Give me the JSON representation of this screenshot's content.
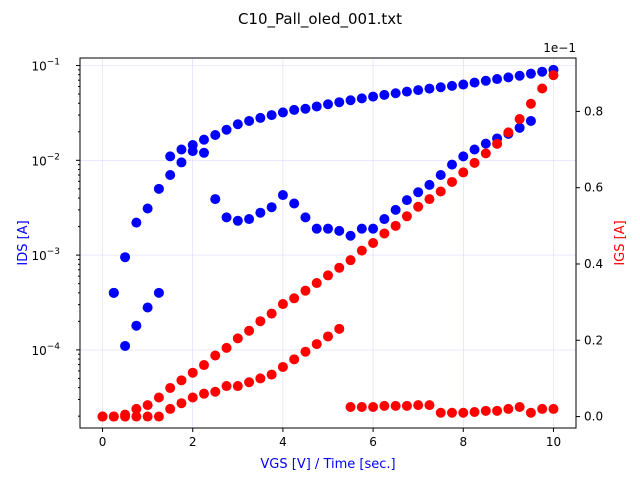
{
  "chart_data": {
    "type": "scatter",
    "title": "C10_Pall_oled_001.txt",
    "xlabel": "VGS [V] / Time [sec.]",
    "ylabel": "IDS [A]",
    "ylabel_right": "IGS [A]",
    "right_axis_multiplier": "1e−1",
    "xlim": [
      -0.5,
      10.5
    ],
    "ylim_left": [
      1.5e-05,
      0.12
    ],
    "yscale_left": "log",
    "ylim_right": [
      -0.03,
      0.94
    ],
    "x_ticks": [
      "0",
      "2",
      "4",
      "6",
      "8",
      "10"
    ],
    "x_tick_values": [
      0,
      2,
      4,
      6,
      8,
      10
    ],
    "y_left_ticks": [
      {
        "value": 0.1,
        "base": "10",
        "exp": "−1"
      },
      {
        "value": 0.01,
        "base": "10",
        "exp": "−2"
      },
      {
        "value": 0.001,
        "base": "10",
        "exp": "−3"
      },
      {
        "value": 0.0001,
        "base": "10",
        "exp": "−4"
      }
    ],
    "y_right_ticks": [
      "0.0",
      "0.2",
      "0.4",
      "0.6",
      "0.8"
    ],
    "y_right_tick_values": [
      0.0,
      0.2,
      0.4,
      0.6,
      0.8
    ],
    "grid": true,
    "colors": {
      "ids": "#0000ff",
      "igs": "#ff0000",
      "ylabel_left": "#0000ff",
      "ylabel_right": "#ff0000",
      "xlabel": "#0000ff"
    },
    "series": [
      {
        "axis": "left",
        "color": "#0000ff",
        "x": [
          0.25,
          0.5,
          0.75,
          1.0,
          1.25,
          1.5,
          1.75,
          2.0,
          2.25,
          2.5,
          2.75,
          3.0,
          3.25,
          3.5,
          3.75,
          4.0,
          4.25,
          4.5,
          4.75,
          5.0,
          5.25,
          5.5,
          5.75,
          6.0,
          6.25,
          6.5,
          6.75,
          7.0,
          7.25,
          7.5,
          7.75,
          8.0,
          8.25,
          8.5,
          8.75,
          9.0,
          9.25,
          9.5,
          9.75,
          10.0,
          0.25,
          0.5,
          0.75,
          1.0,
          1.25,
          1.5,
          1.75,
          2.0,
          2.25,
          2.5,
          2.75,
          3.0,
          3.25,
          3.5,
          3.75,
          4.0,
          4.25,
          4.5,
          4.75,
          5.0,
          5.25,
          5.5,
          5.75,
          6.0,
          6.25,
          6.5,
          6.75,
          7.0,
          7.25,
          7.5,
          7.75,
          8.0,
          8.25,
          8.5,
          8.75,
          9.0,
          9.25,
          9.5
        ],
        "y": [
          0.0004,
          0.00095,
          0.0022,
          0.0031,
          0.005,
          0.007,
          0.0095,
          0.0125,
          0.0165,
          0.0185,
          0.021,
          0.024,
          0.026,
          0.028,
          0.03,
          0.032,
          0.034,
          0.035,
          0.037,
          0.039,
          0.041,
          0.043,
          0.045,
          0.047,
          0.049,
          0.051,
          0.053,
          0.055,
          0.057,
          0.059,
          0.061,
          0.063,
          0.066,
          0.069,
          0.072,
          0.075,
          0.078,
          0.082,
          0.086,
          0.09,
          0.0004,
          0.00011,
          0.00018,
          0.00028,
          0.0004,
          0.011,
          0.013,
          0.0145,
          0.012,
          0.0039,
          0.0025,
          0.0023,
          0.0024,
          0.0028,
          0.0032,
          0.0043,
          0.0035,
          0.0025,
          0.0019,
          0.0019,
          0.0018,
          0.0016,
          0.0019,
          0.0019,
          0.0024,
          0.003,
          0.0038,
          0.0046,
          0.0055,
          0.007,
          0.009,
          0.011,
          0.013,
          0.015,
          0.017,
          0.019,
          0.022,
          0.026
        ]
      },
      {
        "axis": "right",
        "color": "#ff0000",
        "x": [
          0.0,
          0.25,
          0.5,
          0.75,
          1.0,
          1.25,
          1.5,
          1.75,
          2.0,
          2.25,
          2.5,
          2.75,
          3.0,
          3.25,
          3.5,
          3.75,
          4.0,
          4.25,
          4.5,
          4.75,
          5.0,
          5.25,
          5.5,
          5.75,
          6.0,
          6.25,
          6.5,
          6.75,
          7.0,
          7.25,
          7.5,
          7.75,
          8.0,
          8.25,
          8.5,
          8.75,
          9.0,
          9.25,
          9.5,
          9.75,
          10.0,
          0.0,
          0.25,
          0.5,
          0.75,
          1.0,
          1.25,
          1.5,
          1.75,
          2.0,
          2.25,
          2.5,
          2.75,
          3.0,
          3.25,
          3.5,
          3.75,
          4.0,
          4.25,
          4.5,
          4.75,
          5.0,
          5.25,
          5.5,
          5.75,
          6.0,
          6.25,
          6.5,
          6.75,
          7.0,
          7.25,
          7.5,
          7.75,
          8.0,
          8.25,
          8.5,
          8.75,
          9.0,
          9.25,
          9.5,
          9.75,
          10.0
        ],
        "y": [
          0.0,
          0.0,
          0.005,
          0.02,
          0.03,
          0.05,
          0.075,
          0.095,
          0.115,
          0.135,
          0.16,
          0.18,
          0.205,
          0.225,
          0.25,
          0.27,
          0.295,
          0.31,
          0.33,
          0.35,
          0.37,
          0.39,
          0.41,
          0.435,
          0.455,
          0.48,
          0.5,
          0.525,
          0.55,
          0.57,
          0.59,
          0.615,
          0.64,
          0.665,
          0.69,
          0.715,
          0.745,
          0.78,
          0.82,
          0.86,
          0.895,
          0.0,
          0.0,
          0.0,
          0.0,
          0.0,
          0.0,
          0.02,
          0.035,
          0.05,
          0.06,
          0.065,
          0.08,
          0.08,
          0.09,
          0.1,
          0.11,
          0.13,
          0.15,
          0.17,
          0.19,
          0.21,
          0.23,
          0.025,
          0.025,
          0.025,
          0.028,
          0.028,
          0.028,
          0.03,
          0.03,
          0.01,
          0.01,
          0.01,
          0.012,
          0.015,
          0.015,
          0.02,
          0.025,
          0.01,
          0.02,
          0.02
        ]
      }
    ]
  }
}
